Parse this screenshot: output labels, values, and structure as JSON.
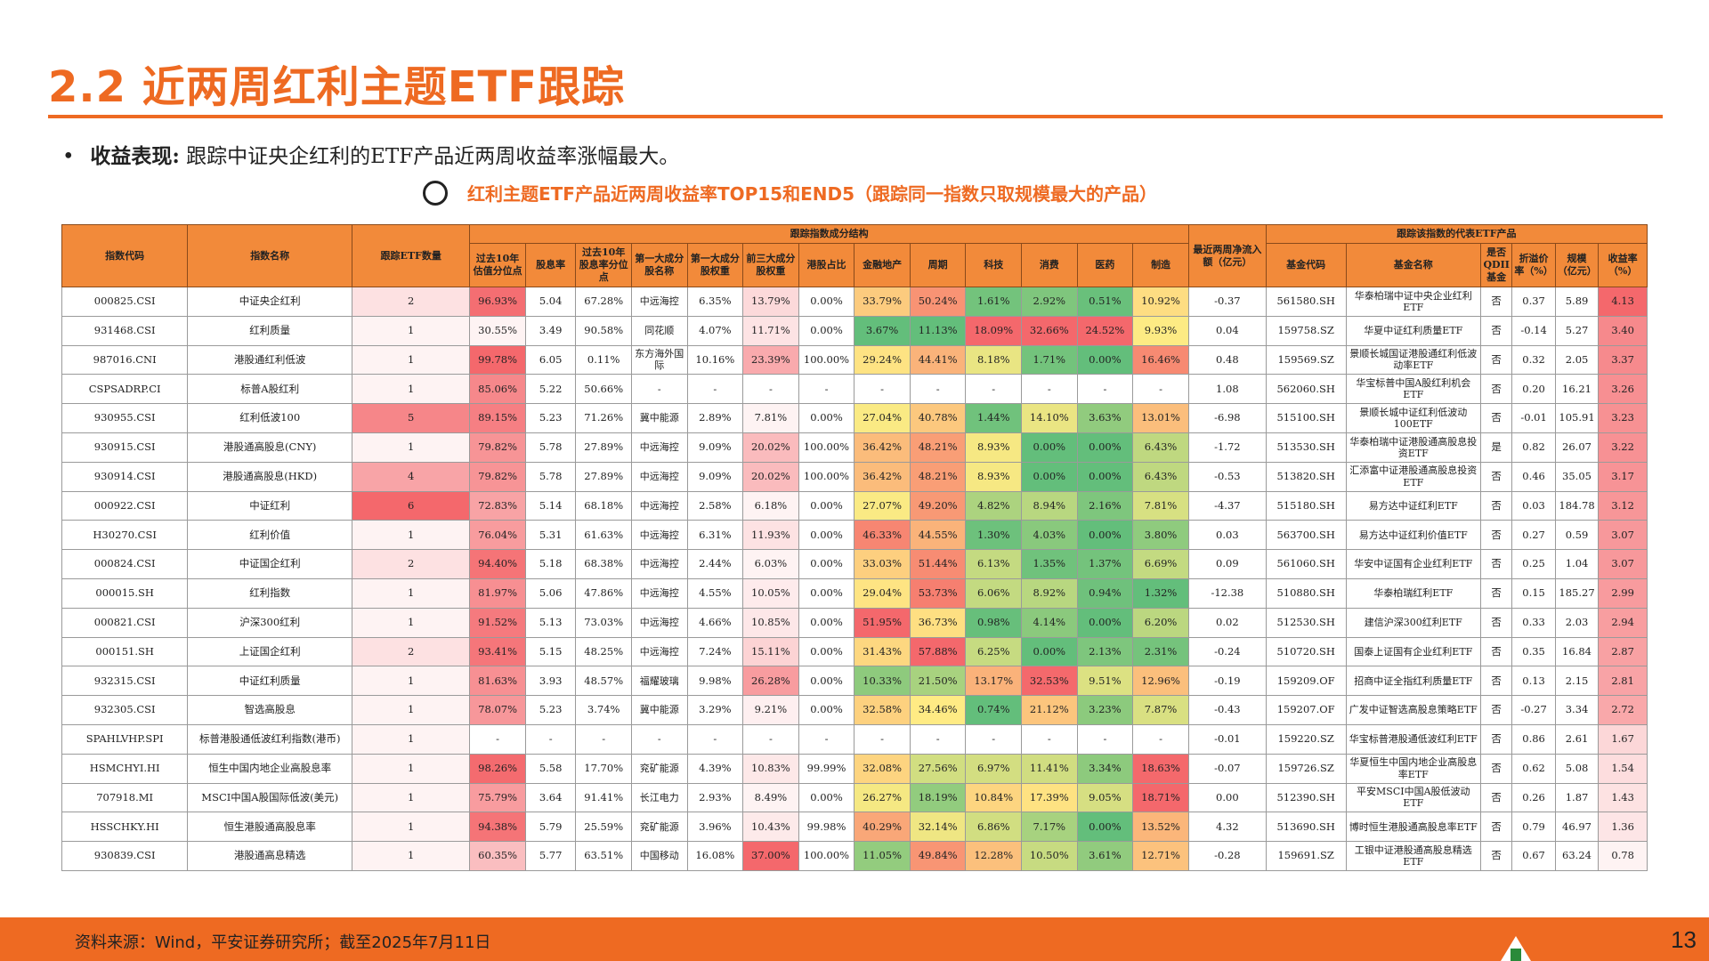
{
  "title": "2.2 近两周红利主题ETF跟踪",
  "bullet": {
    "label": "收益表现:",
    "text": "跟踪中证央企红利的ETF产品近两周收益率涨幅最大。"
  },
  "subtitle": "红利主题ETF产品近两周收益率TOP15和END5（跟踪同一指数只取规模最大的产品）",
  "table": {
    "group_headers": {
      "components": "跟踪指数成分结构",
      "etf": "跟踪该指数的代表ETF产品"
    },
    "headers": {
      "code": "指数代码",
      "name": "指数名称",
      "count": "跟踪ETF数量",
      "pe_pct": "过去10年估值分位点",
      "div_yield": "股息率",
      "div_pct": "过去10年股息率分位点",
      "top1_name": "第一大成分股名称",
      "top1_w": "第一大成分股权重",
      "top3_w": "前三大成分股权重",
      "hk": "港股占比",
      "fin": "金融地产",
      "cyc": "周期",
      "tech": "科技",
      "cons": "消费",
      "med": "医药",
      "mfg": "制造",
      "flow": "最近两周净流入额（亿元）",
      "fund_code": "基金代码",
      "fund_name": "基金名称",
      "qdii": "是否QDII基金",
      "premium": "折溢价率（%）",
      "size": "规模（亿元）",
      "ret": "收益率（%）"
    },
    "rows": [
      {
        "code": "000825.CSI",
        "name": "中证央企红利",
        "count": "2",
        "pe_pct": "96.93%",
        "div_yield": "5.04",
        "div_pct": "67.28%",
        "top1_name": "中远海控",
        "top1_w": "6.35%",
        "top3_w": "13.79%",
        "hk": "0.00%",
        "fin": "33.79%",
        "cyc": "50.24%",
        "tech": "1.61%",
        "cons": "2.92%",
        "med": "0.51%",
        "mfg": "10.92%",
        "flow": "-0.37",
        "fund_code": "561580.SH",
        "fund_name": "华泰柏瑞中证中央企业红利ETF",
        "qdii": "否",
        "premium": "0.37",
        "size": "5.89",
        "ret": "4.13"
      },
      {
        "code": "931468.CSI",
        "name": "红利质量",
        "count": "1",
        "pe_pct": "30.55%",
        "div_yield": "3.49",
        "div_pct": "90.58%",
        "top1_name": "同花顺",
        "top1_w": "4.07%",
        "top3_w": "11.71%",
        "hk": "0.00%",
        "fin": "3.67%",
        "cyc": "11.13%",
        "tech": "18.09%",
        "cons": "32.66%",
        "med": "24.52%",
        "mfg": "9.93%",
        "flow": "0.04",
        "fund_code": "159758.SZ",
        "fund_name": "华夏中证红利质量ETF",
        "qdii": "否",
        "premium": "-0.14",
        "size": "5.27",
        "ret": "3.40"
      },
      {
        "code": "987016.CNI",
        "name": "港股通红利低波",
        "count": "1",
        "pe_pct": "99.78%",
        "div_yield": "6.05",
        "div_pct": "0.11%",
        "top1_name": "东方海外国际",
        "top1_w": "10.16%",
        "top3_w": "23.39%",
        "hk": "100.00%",
        "fin": "29.24%",
        "cyc": "44.41%",
        "tech": "8.18%",
        "cons": "1.71%",
        "med": "0.00%",
        "mfg": "16.46%",
        "flow": "0.48",
        "fund_code": "159569.SZ",
        "fund_name": "景顺长城国证港股通红利低波动率ETF",
        "qdii": "否",
        "premium": "0.32",
        "size": "2.05",
        "ret": "3.37"
      },
      {
        "code": "CSPSADRP.CI",
        "name": "标普A股红利",
        "count": "1",
        "pe_pct": "85.06%",
        "div_yield": "5.22",
        "div_pct": "50.66%",
        "top1_name": "-",
        "top1_w": "-",
        "top3_w": "-",
        "hk": "-",
        "fin": "-",
        "cyc": "-",
        "tech": "-",
        "cons": "-",
        "med": "-",
        "mfg": "-",
        "flow": "1.08",
        "fund_code": "562060.SH",
        "fund_name": "华宝标普中国A股红利机会ETF",
        "qdii": "否",
        "premium": "0.20",
        "size": "16.21",
        "ret": "3.26"
      },
      {
        "code": "930955.CSI",
        "name": "红利低波100",
        "count": "5",
        "pe_pct": "89.15%",
        "div_yield": "5.23",
        "div_pct": "71.26%",
        "top1_name": "冀中能源",
        "top1_w": "2.89%",
        "top3_w": "7.81%",
        "hk": "0.00%",
        "fin": "27.04%",
        "cyc": "40.78%",
        "tech": "1.44%",
        "cons": "14.10%",
        "med": "3.63%",
        "mfg": "13.01%",
        "flow": "-6.98",
        "fund_code": "515100.SH",
        "fund_name": "景顺长城中证红利低波动100ETF",
        "qdii": "否",
        "premium": "-0.01",
        "size": "105.91",
        "ret": "3.23"
      },
      {
        "code": "930915.CSI",
        "name": "港股通高股息(CNY)",
        "count": "1",
        "pe_pct": "79.82%",
        "div_yield": "5.78",
        "div_pct": "27.89%",
        "top1_name": "中远海控",
        "top1_w": "9.09%",
        "top3_w": "20.02%",
        "hk": "100.00%",
        "fin": "36.42%",
        "cyc": "48.21%",
        "tech": "8.93%",
        "cons": "0.00%",
        "med": "0.00%",
        "mfg": "6.43%",
        "flow": "-1.72",
        "fund_code": "513530.SH",
        "fund_name": "华泰柏瑞中证港股通高股息投资ETF",
        "qdii": "是",
        "premium": "0.82",
        "size": "26.07",
        "ret": "3.22"
      },
      {
        "code": "930914.CSI",
        "name": "港股通高股息(HKD)",
        "count": "4",
        "pe_pct": "79.82%",
        "div_yield": "5.78",
        "div_pct": "27.89%",
        "top1_name": "中远海控",
        "top1_w": "9.09%",
        "top3_w": "20.02%",
        "hk": "100.00%",
        "fin": "36.42%",
        "cyc": "48.21%",
        "tech": "8.93%",
        "cons": "0.00%",
        "med": "0.00%",
        "mfg": "6.43%",
        "flow": "-0.53",
        "fund_code": "513820.SH",
        "fund_name": "汇添富中证港股通高股息投资ETF",
        "qdii": "否",
        "premium": "0.46",
        "size": "35.05",
        "ret": "3.17"
      },
      {
        "code": "000922.CSI",
        "name": "中证红利",
        "count": "6",
        "pe_pct": "72.83%",
        "div_yield": "5.14",
        "div_pct": "68.18%",
        "top1_name": "中远海控",
        "top1_w": "2.58%",
        "top3_w": "6.18%",
        "hk": "0.00%",
        "fin": "27.07%",
        "cyc": "49.20%",
        "tech": "4.82%",
        "cons": "8.94%",
        "med": "2.16%",
        "mfg": "7.81%",
        "flow": "-4.37",
        "fund_code": "515180.SH",
        "fund_name": "易方达中证红利ETF",
        "qdii": "否",
        "premium": "0.03",
        "size": "184.78",
        "ret": "3.12"
      },
      {
        "code": "H30270.CSI",
        "name": "红利价值",
        "count": "1",
        "pe_pct": "76.04%",
        "div_yield": "5.31",
        "div_pct": "61.63%",
        "top1_name": "中远海控",
        "top1_w": "6.31%",
        "top3_w": "11.93%",
        "hk": "0.00%",
        "fin": "46.33%",
        "cyc": "44.55%",
        "tech": "1.30%",
        "cons": "4.03%",
        "med": "0.00%",
        "mfg": "3.80%",
        "flow": "0.03",
        "fund_code": "563700.SH",
        "fund_name": "易方达中证红利价值ETF",
        "qdii": "否",
        "premium": "0.27",
        "size": "0.59",
        "ret": "3.07"
      },
      {
        "code": "000824.CSI",
        "name": "中证国企红利",
        "count": "2",
        "pe_pct": "94.40%",
        "div_yield": "5.18",
        "div_pct": "68.38%",
        "top1_name": "中远海控",
        "top1_w": "2.44%",
        "top3_w": "6.03%",
        "hk": "0.00%",
        "fin": "33.03%",
        "cyc": "51.44%",
        "tech": "6.13%",
        "cons": "1.35%",
        "med": "1.37%",
        "mfg": "6.69%",
        "flow": "0.09",
        "fund_code": "561060.SH",
        "fund_name": "华安中证国有企业红利ETF",
        "qdii": "否",
        "premium": "0.25",
        "size": "1.04",
        "ret": "3.07"
      },
      {
        "code": "000015.SH",
        "name": "红利指数",
        "count": "1",
        "pe_pct": "81.97%",
        "div_yield": "5.06",
        "div_pct": "47.86%",
        "top1_name": "中远海控",
        "top1_w": "4.55%",
        "top3_w": "10.05%",
        "hk": "0.00%",
        "fin": "29.04%",
        "cyc": "53.73%",
        "tech": "6.06%",
        "cons": "8.92%",
        "med": "0.94%",
        "mfg": "1.32%",
        "flow": "-12.38",
        "fund_code": "510880.SH",
        "fund_name": "华泰柏瑞红利ETF",
        "qdii": "否",
        "premium": "0.15",
        "size": "185.27",
        "ret": "2.99"
      },
      {
        "code": "000821.CSI",
        "name": "沪深300红利",
        "count": "1",
        "pe_pct": "91.52%",
        "div_yield": "5.13",
        "div_pct": "73.03%",
        "top1_name": "中远海控",
        "top1_w": "4.66%",
        "top3_w": "10.85%",
        "hk": "0.00%",
        "fin": "51.95%",
        "cyc": "36.73%",
        "tech": "0.98%",
        "cons": "4.14%",
        "med": "0.00%",
        "mfg": "6.20%",
        "flow": "0.02",
        "fund_code": "512530.SH",
        "fund_name": "建信沪深300红利ETF",
        "qdii": "否",
        "premium": "0.33",
        "size": "2.03",
        "ret": "2.94"
      },
      {
        "code": "000151.SH",
        "name": "上证国企红利",
        "count": "2",
        "pe_pct": "93.41%",
        "div_yield": "5.15",
        "div_pct": "48.25%",
        "top1_name": "中远海控",
        "top1_w": "7.24%",
        "top3_w": "15.11%",
        "hk": "0.00%",
        "fin": "31.43%",
        "cyc": "57.88%",
        "tech": "6.25%",
        "cons": "0.00%",
        "med": "2.13%",
        "mfg": "2.31%",
        "flow": "-0.24",
        "fund_code": "510720.SH",
        "fund_name": "国泰上证国有企业红利ETF",
        "qdii": "否",
        "premium": "0.35",
        "size": "16.84",
        "ret": "2.87"
      },
      {
        "code": "932315.CSI",
        "name": "中证红利质量",
        "count": "1",
        "pe_pct": "81.63%",
        "div_yield": "3.93",
        "div_pct": "48.57%",
        "top1_name": "福耀玻璃",
        "top1_w": "9.98%",
        "top3_w": "26.28%",
        "hk": "0.00%",
        "fin": "10.33%",
        "cyc": "21.50%",
        "tech": "13.17%",
        "cons": "32.53%",
        "med": "9.51%",
        "mfg": "12.96%",
        "flow": "-0.19",
        "fund_code": "159209.OF",
        "fund_name": "招商中证全指红利质量ETF",
        "qdii": "否",
        "premium": "0.13",
        "size": "2.15",
        "ret": "2.81"
      },
      {
        "code": "932305.CSI",
        "name": "智选高股息",
        "count": "1",
        "pe_pct": "78.07%",
        "div_yield": "5.23",
        "div_pct": "3.74%",
        "top1_name": "冀中能源",
        "top1_w": "3.29%",
        "top3_w": "9.21%",
        "hk": "0.00%",
        "fin": "32.58%",
        "cyc": "34.46%",
        "tech": "0.74%",
        "cons": "21.12%",
        "med": "3.23%",
        "mfg": "7.87%",
        "flow": "-0.43",
        "fund_code": "159207.OF",
        "fund_name": "广发中证智选高股息策略ETF",
        "qdii": "否",
        "premium": "-0.27",
        "size": "3.34",
        "ret": "2.72"
      },
      {
        "code": "SPAHLVHP.SPI",
        "name": "标普港股通低波红利指数(港币)",
        "count": "1",
        "pe_pct": "-",
        "div_yield": "-",
        "div_pct": "-",
        "top1_name": "-",
        "top1_w": "-",
        "top3_w": "-",
        "hk": "-",
        "fin": "-",
        "cyc": "-",
        "tech": "-",
        "cons": "-",
        "med": "-",
        "mfg": "-",
        "flow": "-0.01",
        "fund_code": "159220.SZ",
        "fund_name": "华宝标普港股通低波红利ETF",
        "qdii": "否",
        "premium": "0.86",
        "size": "2.61",
        "ret": "1.67"
      },
      {
        "code": "HSMCHYI.HI",
        "name": "恒生中国内地企业高股息率",
        "count": "1",
        "pe_pct": "98.26%",
        "div_yield": "5.58",
        "div_pct": "17.70%",
        "top1_name": "兖矿能源",
        "top1_w": "4.39%",
        "top3_w": "10.83%",
        "hk": "99.99%",
        "fin": "32.08%",
        "cyc": "27.56%",
        "tech": "6.97%",
        "cons": "11.41%",
        "med": "3.34%",
        "mfg": "18.63%",
        "flow": "-0.07",
        "fund_code": "159726.SZ",
        "fund_name": "华夏恒生中国内地企业高股息率ETF",
        "qdii": "否",
        "premium": "0.62",
        "size": "5.08",
        "ret": "1.54"
      },
      {
        "code": "707918.MI",
        "name": "MSCI中国A股国际低波(美元)",
        "count": "1",
        "pe_pct": "75.79%",
        "div_yield": "3.64",
        "div_pct": "91.41%",
        "top1_name": "长江电力",
        "top1_w": "2.93%",
        "top3_w": "8.49%",
        "hk": "0.00%",
        "fin": "26.27%",
        "cyc": "18.19%",
        "tech": "10.84%",
        "cons": "17.39%",
        "med": "9.05%",
        "mfg": "18.71%",
        "flow": "0.00",
        "fund_code": "512390.SH",
        "fund_name": "平安MSCI中国A股低波动ETF",
        "qdii": "否",
        "premium": "0.26",
        "size": "1.87",
        "ret": "1.43"
      },
      {
        "code": "HSSCHKY.HI",
        "name": "恒生港股通高股息率",
        "count": "1",
        "pe_pct": "94.38%",
        "div_yield": "5.79",
        "div_pct": "25.59%",
        "top1_name": "兖矿能源",
        "top1_w": "3.96%",
        "top3_w": "10.43%",
        "hk": "99.98%",
        "fin": "40.29%",
        "cyc": "32.14%",
        "tech": "6.86%",
        "cons": "7.17%",
        "med": "0.00%",
        "mfg": "13.52%",
        "flow": "4.32",
        "fund_code": "513690.SH",
        "fund_name": "博时恒生港股通高股息率ETF",
        "qdii": "否",
        "premium": "0.79",
        "size": "46.97",
        "ret": "1.36"
      },
      {
        "code": "930839.CSI",
        "name": "港股通高息精选",
        "count": "1",
        "pe_pct": "60.35%",
        "div_yield": "5.77",
        "div_pct": "63.51%",
        "top1_name": "中国移动",
        "top1_w": "16.08%",
        "top3_w": "37.00%",
        "hk": "100.00%",
        "fin": "11.05%",
        "cyc": "49.84%",
        "tech": "12.28%",
        "cons": "10.50%",
        "med": "3.61%",
        "mfg": "12.71%",
        "flow": "-0.28",
        "fund_code": "159691.SZ",
        "fund_name": "工银中证港股通高股息精选ETF",
        "qdii": "否",
        "premium": "0.67",
        "size": "63.24",
        "ret": "0.78"
      }
    ]
  },
  "footer": {
    "source": "资料来源：Wind，平安证券研究所；截至2025年7月11日",
    "page": "13"
  }
}
